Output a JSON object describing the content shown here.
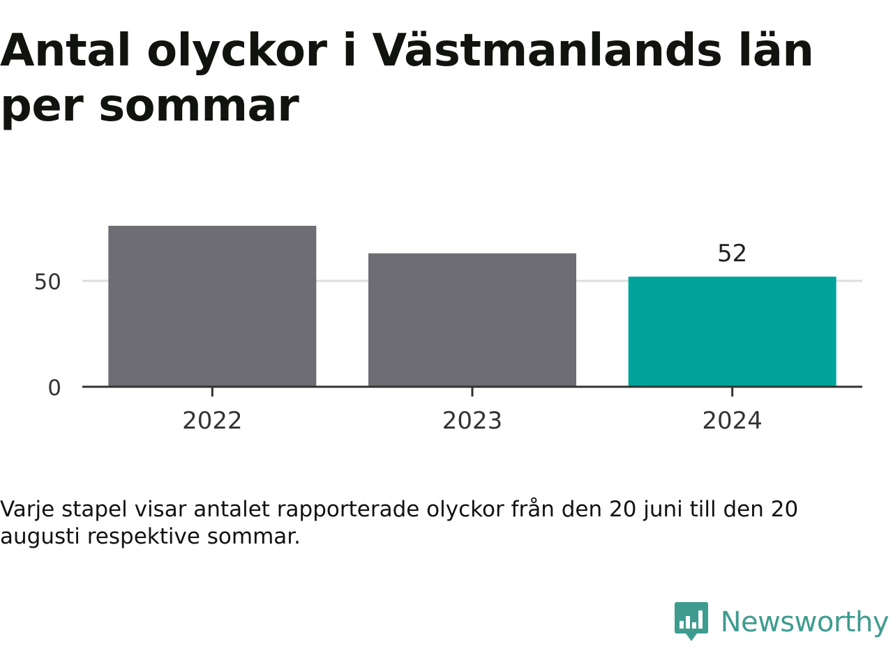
{
  "title": "Antal olyckor i Västmanlands län per sommar",
  "caption": "Varje stapel visar antalet rapporterade olyckor från den 20 juni till den 20 augusti respektive sommar.",
  "brand": {
    "name": "Newsworthy",
    "icon": "bar-chart-speech-bubble-icon",
    "color": "#3e9c8f"
  },
  "chart_data": {
    "type": "bar",
    "categories": [
      "2022",
      "2023",
      "2024"
    ],
    "values": [
      76,
      63,
      52
    ],
    "data_labels": [
      "",
      "",
      "52"
    ],
    "bar_colors": [
      "#6e6d73",
      "#6e6d73",
      "#00a49a"
    ],
    "yticks": [
      0,
      50
    ],
    "ylim": [
      0,
      76
    ],
    "grid": true,
    "legend": "none"
  }
}
